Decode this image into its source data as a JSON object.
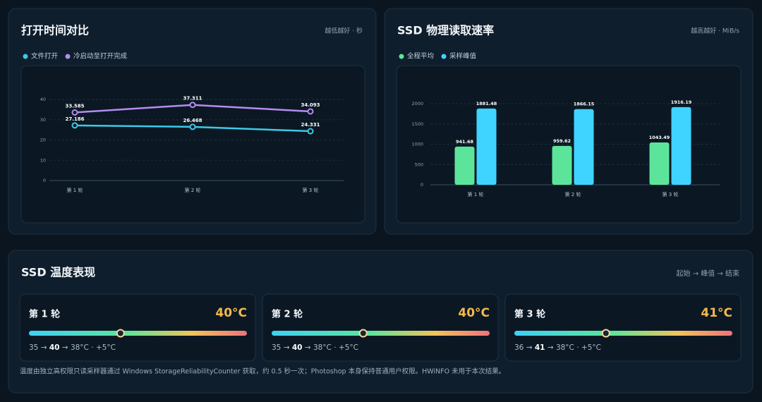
{
  "chart_data": [
    {
      "type": "line",
      "title": "打开时间对比",
      "subtitle": "越低越好 · 秒",
      "categories": [
        "第 1 轮",
        "第 2 轮",
        "第 3 轮"
      ],
      "series": [
        {
          "name": "文件打开",
          "color": "#3ec9e6",
          "values": [
            27.186,
            26.468,
            24.331
          ]
        },
        {
          "name": "冷启动至打开完成",
          "color": "#b48cf0",
          "values": [
            33.585,
            37.311,
            34.093
          ]
        }
      ],
      "ylim": [
        0,
        40
      ],
      "yticks": [
        0,
        10,
        20,
        30,
        40
      ],
      "grid": true,
      "legend": "top-left"
    },
    {
      "type": "bar",
      "title": "SSD 物理读取速率",
      "subtitle": "越高越好 · MiB/s",
      "categories": [
        "第 1 轮",
        "第 2 轮",
        "第 3 轮"
      ],
      "series": [
        {
          "name": "全程平均",
          "color": "#5ce59a",
          "values": [
            941.68,
            959.62,
            1043.49
          ]
        },
        {
          "name": "采样峰值",
          "color": "#3fd4ff",
          "values": [
            1881.48,
            1866.15,
            1916.19
          ]
        }
      ],
      "ylim": [
        0,
        2000
      ],
      "yticks": [
        0,
        500,
        1000,
        1500,
        2000
      ],
      "grid": true,
      "legend": "top-left"
    }
  ],
  "temperature": {
    "title": "SSD 温度表现",
    "subtitle": "起始 → 峰值 → 结束",
    "rounds": [
      {
        "label": "第 1 轮",
        "peak": "40°C",
        "detail": [
          "35 → ",
          "40",
          " → 38°C · +5°C"
        ]
      },
      {
        "label": "第 2 轮",
        "peak": "40°C",
        "detail": [
          "35 → ",
          "40",
          " → 38°C · +5°C"
        ]
      },
      {
        "label": "第 3 轮",
        "peak": "41°C",
        "detail": [
          "36 → ",
          "41",
          " → 38°C · +5°C"
        ]
      }
    ],
    "note": "温度由独立高权限只读采样器通过 Windows StorageReliabilityCounter 获取，约 0.5 秒一次；Photoshop 本身保持普通用户权限。HWiNFO 未用于本次结果。"
  }
}
